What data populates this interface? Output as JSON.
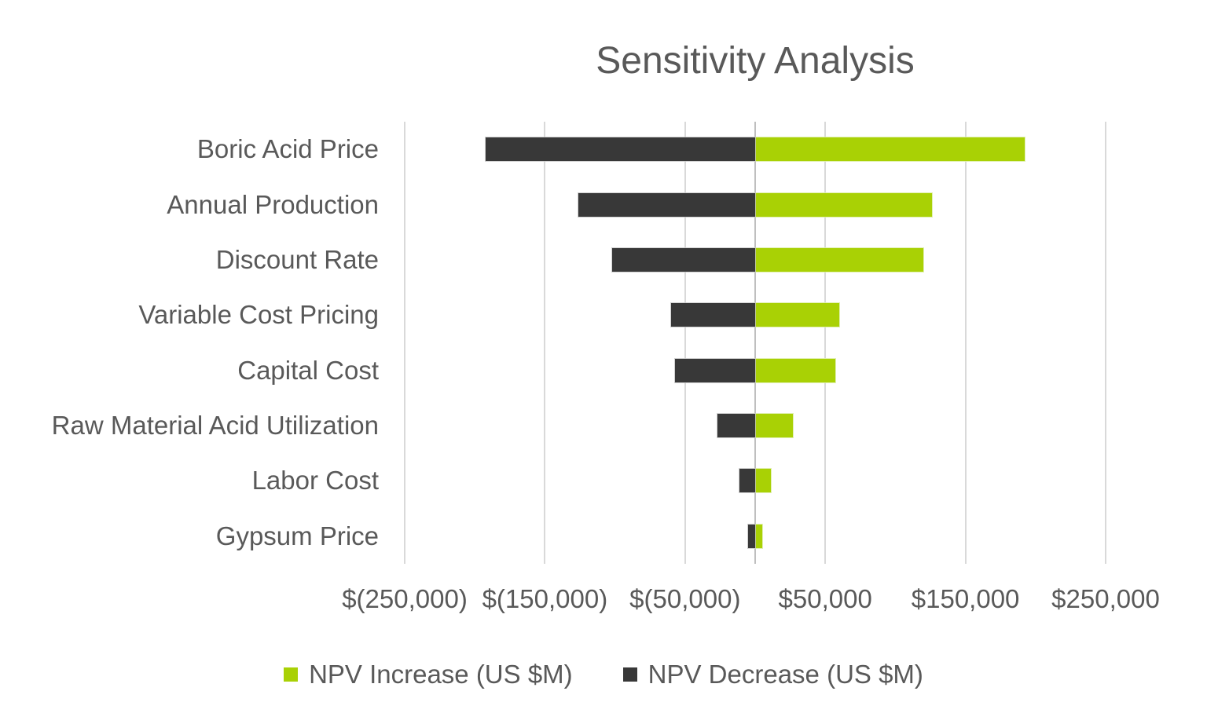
{
  "title": "Sensitivity Analysis",
  "colors": {
    "increase_green": "#A9D105",
    "decrease_dark": "#383838",
    "text_gray": "#595959",
    "gridline": "#D9D9D9",
    "zero_axis_line": "#BFBFBF",
    "background": "#FFFFFF"
  },
  "chart_data": {
    "type": "bar",
    "orientation": "horizontal-tornado",
    "title": "Sensitivity Analysis",
    "categories": [
      "Boric Acid Price",
      "Annual Production",
      "Discount Rate",
      "Variable Cost Pricing",
      "Capital Cost",
      "Raw Material Acid Utilization",
      "Labor Cost",
      "Gypsum Price"
    ],
    "series": [
      {
        "name": "NPV Increase (US $M)",
        "color": "#A9D105",
        "values": [
          192000,
          126000,
          120000,
          60000,
          57000,
          27000,
          11000,
          5000
        ]
      },
      {
        "name": "NPV Decrease (US $M)",
        "color": "#383838",
        "values": [
          -192000,
          -126000,
          -102000,
          -60000,
          -57000,
          -27000,
          -11000,
          -5000
        ]
      }
    ],
    "x_axis": {
      "min": -250000,
      "max": 250000,
      "tick_step": 100000,
      "tick_labels": [
        "$(250,000)",
        "$(150,000)",
        "$(50,000)",
        "$50,000",
        "$150,000",
        "$250,000"
      ]
    },
    "y_axis_zero_line": 0,
    "grid": true,
    "legend_position": "bottom"
  }
}
